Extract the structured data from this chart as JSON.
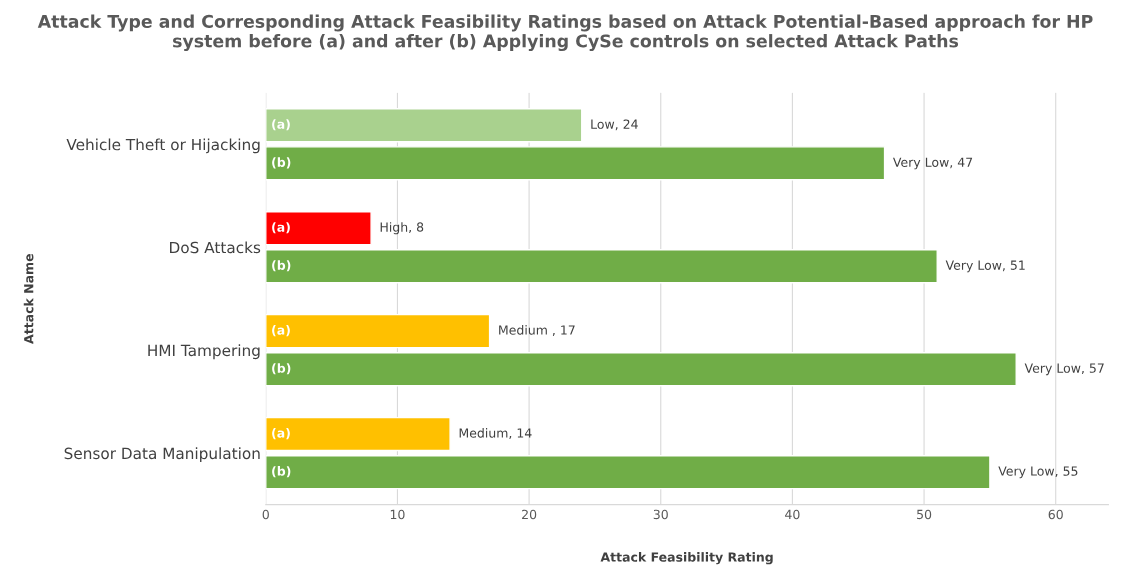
{
  "chart_data": {
    "type": "bar",
    "orientation": "horizontal",
    "title": "Attack Type and Corresponding Attack Feasibility Ratings based on Attack Potential-Based approach for HP system before (a) and after (b) Applying CySe controls on selected Attack Paths",
    "xlabel": "Attack Feasibility Rating",
    "ylabel": "Attack Name",
    "categories": [
      "Vehicle Theft or Hijacking",
      "DoS Attacks",
      "HMI Tampering",
      "Sensor Data Manipulation"
    ],
    "series": [
      {
        "name": "(a)",
        "colors": [
          "#a9d18e",
          "#ff0000",
          "#ffc000",
          "#ffc000"
        ],
        "values": [
          24,
          8,
          17,
          14
        ],
        "value_labels": [
          "Low, 24",
          "High, 8",
          "Medium , 17",
          "Medium, 14"
        ]
      },
      {
        "name": "(b)",
        "color": "#70ad47",
        "values": [
          47,
          51,
          57,
          55
        ],
        "value_labels": [
          "Very Low, 47",
          "Very Low, 51",
          "Very Low, 57",
          "Very Low, 55"
        ]
      }
    ],
    "xlim": [
      0,
      64
    ],
    "xticks": [
      0,
      10,
      20,
      30,
      40,
      50,
      60
    ],
    "grid": "x",
    "legend": false
  }
}
